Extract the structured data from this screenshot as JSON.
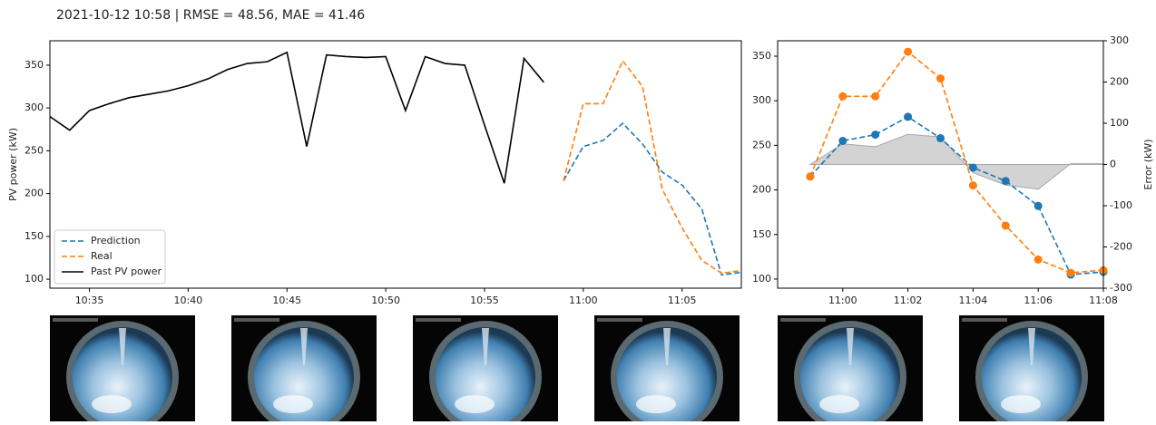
{
  "title": "2021-10-12 10:58 | RMSE = 48.56, MAE = 41.46",
  "chart_data": [
    {
      "type": "line",
      "ylabel": "PV power (kW)",
      "xlim": [
        "10:33",
        "11:08"
      ],
      "xticks": [
        "10:35",
        "10:40",
        "10:45",
        "10:50",
        "10:55",
        "11:00",
        "11:05"
      ],
      "ylim": [
        89.5,
        378.5
      ],
      "yticks": [
        100,
        150,
        200,
        250,
        300,
        350
      ],
      "legend": "lower left",
      "series": [
        {
          "name": "Prediction",
          "color": "#1f77b4",
          "dashed": true,
          "x": [
            "10:59",
            "11:00",
            "11:01",
            "11:02",
            "11:03",
            "11:04",
            "11:05",
            "11:06",
            "11:07",
            "11:08"
          ],
          "values": [
            215,
            255,
            262,
            282,
            258,
            225,
            210,
            182,
            105,
            108
          ]
        },
        {
          "name": "Real",
          "color": "#ff7f0e",
          "dashed": true,
          "x": [
            "10:59",
            "11:00",
            "11:01",
            "11:02",
            "11:03",
            "11:04",
            "11:05",
            "11:06",
            "11:07",
            "11:08"
          ],
          "values": [
            215,
            305,
            305,
            355,
            325,
            205,
            160,
            122,
            107,
            110
          ]
        },
        {
          "name": "Past PV power",
          "color": "#000000",
          "dashed": false,
          "x": [
            "10:33",
            "10:34",
            "10:35",
            "10:36",
            "10:37",
            "10:38",
            "10:39",
            "10:40",
            "10:41",
            "10:42",
            "10:43",
            "10:44",
            "10:45",
            "10:46",
            "10:47",
            "10:48",
            "10:49",
            "10:50",
            "10:51",
            "10:52",
            "10:53",
            "10:54",
            "10:55",
            "10:56",
            "10:57",
            "10:58"
          ],
          "values": [
            290,
            274,
            297,
            305,
            312,
            316,
            320,
            326,
            334,
            345,
            352,
            354,
            365,
            255,
            362,
            360,
            359,
            360,
            297,
            360,
            352,
            350,
            280,
            212,
            358,
            330
          ]
        }
      ]
    },
    {
      "type": "line",
      "y2label": "Error (kW)",
      "xlim": [
        "10:58",
        "11:08"
      ],
      "xticks": [
        "11:00",
        "11:02",
        "11:04",
        "11:06",
        "11:08"
      ],
      "ylim": [
        89.8,
        367.3
      ],
      "yticks": [
        100,
        150,
        200,
        250,
        300,
        350
      ],
      "y2lim": [
        -300,
        300
      ],
      "y2ticks": [
        -300,
        -200,
        -100,
        0,
        100,
        200,
        300
      ],
      "series": [
        {
          "axis": "y2",
          "fill": true,
          "color": "#d3d3d3",
          "x": [
            "10:59",
            "11:00",
            "11:01",
            "11:02",
            "11:03",
            "11:04",
            "11:05",
            "11:06",
            "11:07",
            "11:08"
          ],
          "values": [
            0,
            50,
            43,
            73,
            67,
            -20,
            -50,
            -60,
            2,
            2
          ]
        },
        {
          "name": "Prediction",
          "color": "#1f77b4",
          "dashed": true,
          "markers": true,
          "x": [
            "10:59",
            "11:00",
            "11:01",
            "11:02",
            "11:03",
            "11:04",
            "11:05",
            "11:06",
            "11:07",
            "11:08"
          ],
          "values": [
            215,
            255,
            262,
            282,
            258,
            225,
            210,
            182,
            105,
            108
          ]
        },
        {
          "name": "Real",
          "color": "#ff7f0e",
          "dashed": true,
          "markers": true,
          "x": [
            "10:59",
            "11:00",
            "11:01",
            "11:02",
            "11:03",
            "11:04",
            "11:05",
            "11:06",
            "11:07",
            "11:08"
          ],
          "values": [
            215,
            305,
            305,
            355,
            325,
            205,
            160,
            122,
            107,
            110
          ]
        }
      ]
    }
  ]
}
